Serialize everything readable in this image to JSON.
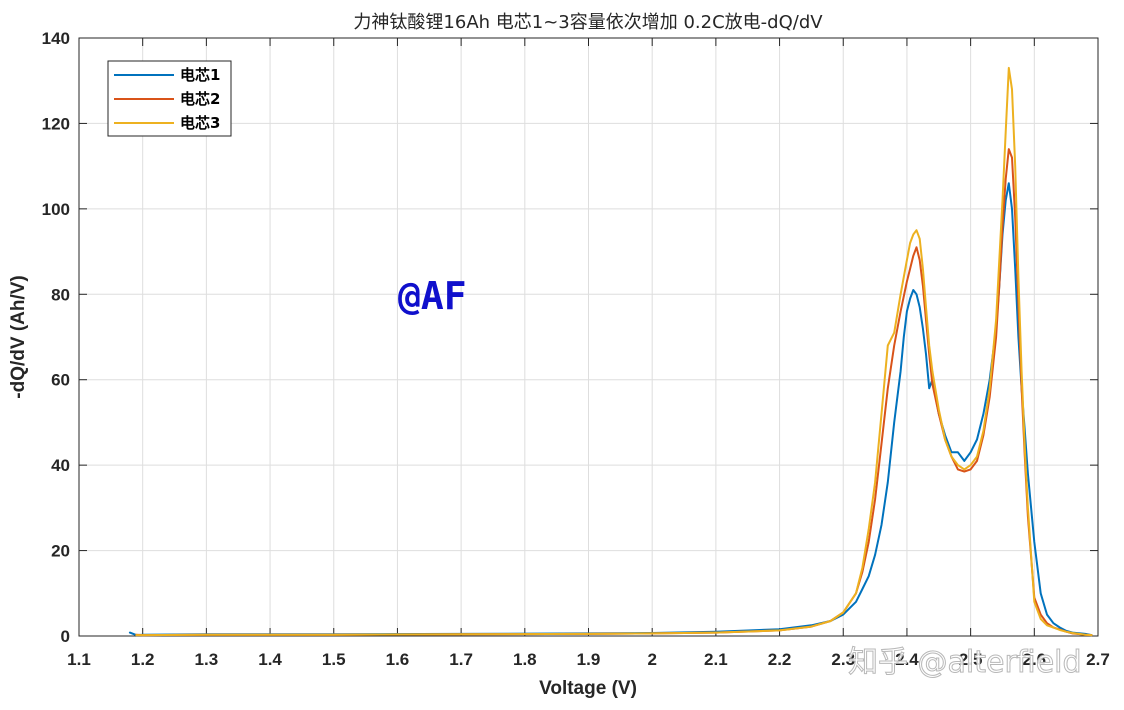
{
  "chart_data": {
    "type": "line",
    "title": "力神钛酸锂16Ah 电芯1~3容量依次增加 0.2C放电-dQ/dV",
    "xlabel": "Voltage (V)",
    "ylabel": "-dQ/dV (Ah/V)",
    "xlim": [
      1.1,
      2.7
    ],
    "ylim": [
      0,
      140
    ],
    "xticks": [
      "1.1",
      "1.2",
      "1.3",
      "1.4",
      "1.5",
      "1.6",
      "1.7",
      "1.8",
      "1.9",
      "2",
      "2.1",
      "2.2",
      "2.3",
      "2.4",
      "2.5",
      "2.6",
      "2.7"
    ],
    "yticks": [
      "0",
      "20",
      "40",
      "60",
      "80",
      "100",
      "120",
      "140"
    ],
    "grid": true,
    "legend_position": "top-left",
    "series": [
      {
        "name": "电芯1",
        "color": "#0072BD",
        "x": [
          1.18,
          1.19,
          1.2,
          1.3,
          1.5,
          1.7,
          1.9,
          2.0,
          2.1,
          2.2,
          2.25,
          2.28,
          2.3,
          2.32,
          2.33,
          2.34,
          2.35,
          2.36,
          2.37,
          2.38,
          2.39,
          2.395,
          2.4,
          2.405,
          2.41,
          2.415,
          2.42,
          2.425,
          2.43,
          2.435,
          2.44,
          2.45,
          2.46,
          2.47,
          2.48,
          2.49,
          2.5,
          2.51,
          2.52,
          2.53,
          2.54,
          2.545,
          2.55,
          2.555,
          2.56,
          2.565,
          2.57,
          2.575,
          2.58,
          2.585,
          2.59,
          2.6,
          2.61,
          2.62,
          2.63,
          2.64,
          2.65,
          2.66,
          2.68,
          2.69
        ],
        "y": [
          0.8,
          0.2,
          0.3,
          0.4,
          0.4,
          0.5,
          0.6,
          0.7,
          1.0,
          1.6,
          2.5,
          3.5,
          5.0,
          8.0,
          11.0,
          14.0,
          19.0,
          26.0,
          36.0,
          50.0,
          62.0,
          70.0,
          76.0,
          79.0,
          81.0,
          80.0,
          77.0,
          72.0,
          66.0,
          58.0,
          60.0,
          52.0,
          47.0,
          43.0,
          43.0,
          41.0,
          43.0,
          46.0,
          52.0,
          60.0,
          72.0,
          82.0,
          94.0,
          102.0,
          106.0,
          100.0,
          86.0,
          70.0,
          58.0,
          48.0,
          38.0,
          22.0,
          10.0,
          5.0,
          3.0,
          2.0,
          1.2,
          0.8,
          0.5,
          0.2
        ]
      },
      {
        "name": "电芯2",
        "color": "#D95319",
        "x": [
          1.19,
          1.2,
          1.3,
          1.5,
          1.7,
          1.9,
          2.0,
          2.1,
          2.2,
          2.25,
          2.28,
          2.3,
          2.32,
          2.33,
          2.34,
          2.35,
          2.36,
          2.37,
          2.38,
          2.39,
          2.4,
          2.405,
          2.41,
          2.415,
          2.42,
          2.425,
          2.43,
          2.435,
          2.44,
          2.45,
          2.46,
          2.47,
          2.48,
          2.49,
          2.5,
          2.51,
          2.52,
          2.53,
          2.54,
          2.545,
          2.55,
          2.555,
          2.56,
          2.565,
          2.57,
          2.575,
          2.58,
          2.585,
          2.59,
          2.6,
          2.61,
          2.62,
          2.63,
          2.64,
          2.65,
          2.66,
          2.68,
          2.69
        ],
        "y": [
          0.3,
          0.2,
          0.3,
          0.3,
          0.4,
          0.5,
          0.6,
          0.8,
          1.3,
          2.2,
          3.5,
          5.5,
          10.0,
          15.0,
          22.0,
          32.0,
          45.0,
          58.0,
          68.0,
          76.0,
          83.0,
          86.0,
          89.0,
          91.0,
          88.0,
          82.0,
          74.0,
          66.0,
          59.0,
          52.0,
          46.0,
          42.0,
          39.0,
          38.5,
          39.0,
          41.0,
          47.0,
          56.0,
          70.0,
          82.0,
          96.0,
          107.0,
          114.0,
          112.0,
          98.0,
          78.0,
          58.0,
          42.0,
          28.0,
          9.0,
          5.0,
          3.0,
          2.0,
          1.5,
          1.0,
          0.6,
          0.3,
          0.2
        ]
      },
      {
        "name": "电芯3",
        "color": "#EDB120",
        "x": [
          1.19,
          1.2,
          1.3,
          1.5,
          1.7,
          1.9,
          2.0,
          2.1,
          2.2,
          2.25,
          2.28,
          2.3,
          2.32,
          2.33,
          2.34,
          2.35,
          2.36,
          2.37,
          2.38,
          2.39,
          2.4,
          2.405,
          2.41,
          2.415,
          2.42,
          2.425,
          2.43,
          2.435,
          2.44,
          2.45,
          2.46,
          2.47,
          2.48,
          2.49,
          2.5,
          2.51,
          2.52,
          2.53,
          2.54,
          2.545,
          2.55,
          2.555,
          2.56,
          2.565,
          2.57,
          2.575,
          2.58,
          2.585,
          2.59,
          2.6,
          2.61,
          2.62,
          2.63,
          2.64,
          2.65,
          2.66,
          2.68,
          2.69
        ],
        "y": [
          0.2,
          0.2,
          0.3,
          0.3,
          0.4,
          0.5,
          0.6,
          0.8,
          1.3,
          2.2,
          3.5,
          5.5,
          10.0,
          16.0,
          25.0,
          36.0,
          52.0,
          68.0,
          71.0,
          80.0,
          88.0,
          92.0,
          94.0,
          95.0,
          93.0,
          86.0,
          77.0,
          68.0,
          62.0,
          53.0,
          46.0,
          42.0,
          40.0,
          39.0,
          40.0,
          42.0,
          48.0,
          58.0,
          74.0,
          88.0,
          102.0,
          118.0,
          133.0,
          128.0,
          110.0,
          84.0,
          62.0,
          44.0,
          30.0,
          8.0,
          4.0,
          2.5,
          2.0,
          1.4,
          1.0,
          0.7,
          0.3,
          0.2
        ]
      }
    ]
  },
  "annotation_text": "@AF",
  "watermark_text": "知乎 @alterfield"
}
